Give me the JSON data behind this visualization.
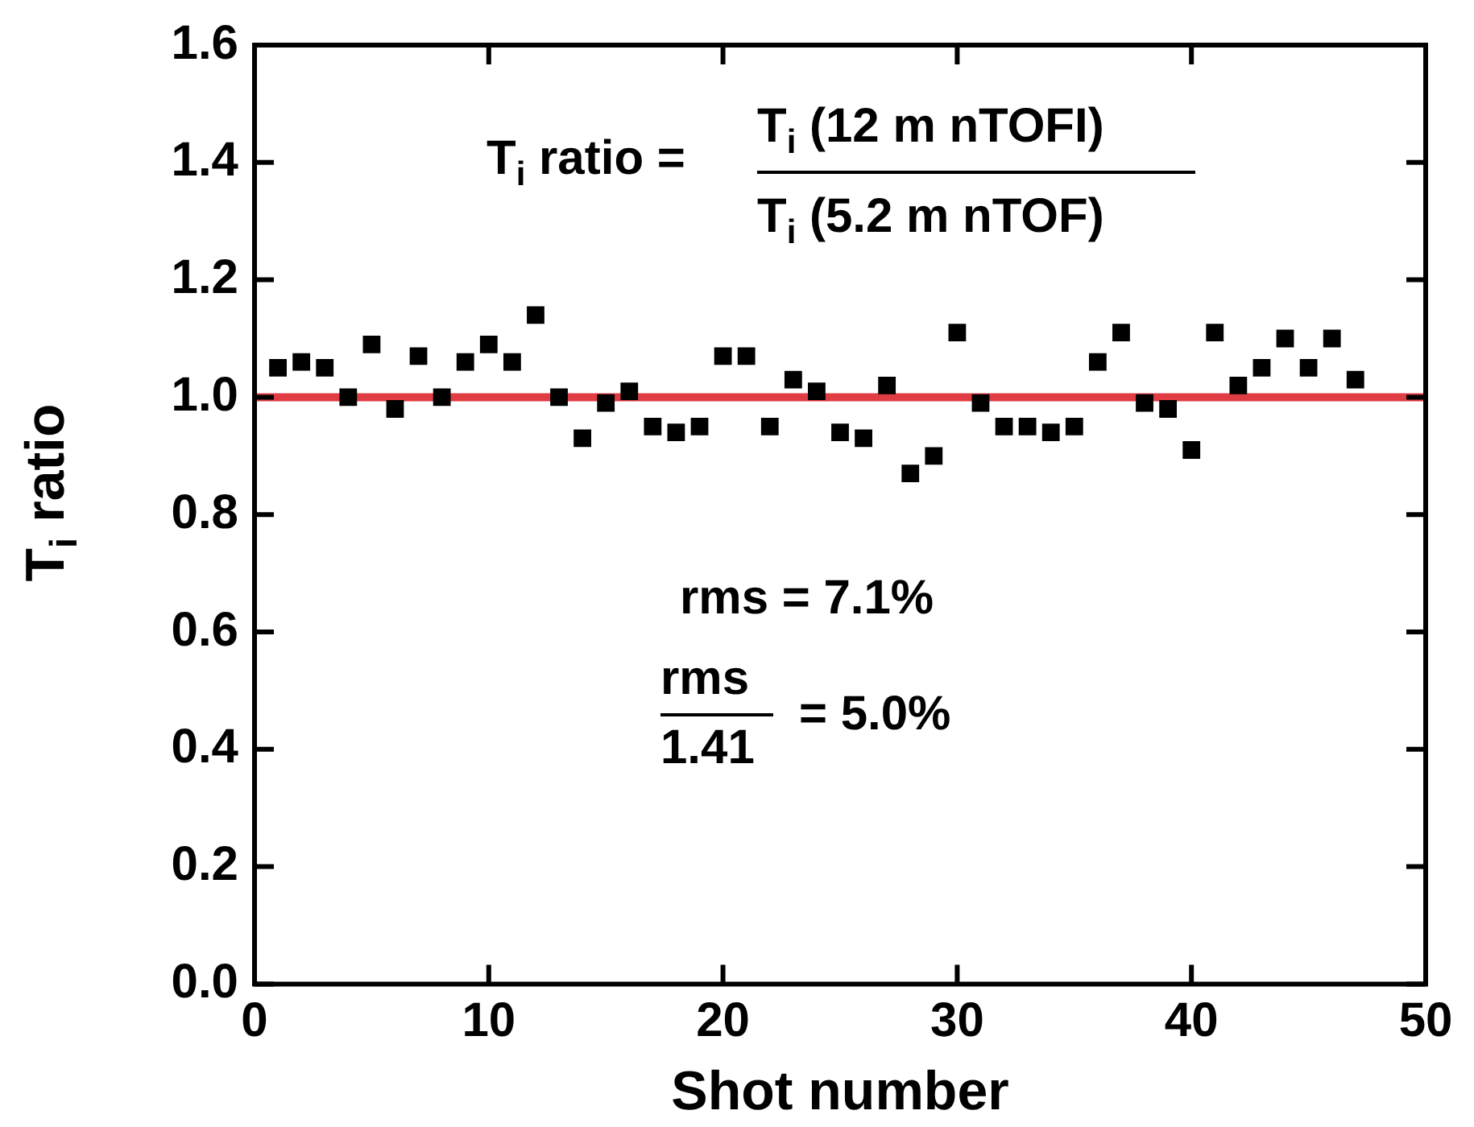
{
  "chart_data": {
    "type": "scatter",
    "xlabel": "Shot number",
    "ylabel": "T$_{i}$ ratio",
    "annotations": [
      "T$_{i}$ ratio =",
      "T$_{i}$ (12 m nTOFI)",
      "T$_{i}$ (5.2 m nTOF)",
      "rms = 7.1%",
      "rms",
      "1.41",
      "= 5.0%"
    ],
    "x": [
      1,
      2,
      3,
      4,
      5,
      6,
      7,
      8,
      9,
      10,
      11,
      12,
      13,
      14,
      15,
      16,
      17,
      18,
      19,
      20,
      21,
      22,
      23,
      24,
      25,
      26,
      27,
      28,
      29,
      30,
      31,
      32,
      33,
      34,
      35,
      36,
      37,
      38,
      39,
      40,
      41,
      42,
      43,
      44,
      45,
      46,
      47
    ],
    "series": [
      {
        "color": "#000000",
        "values": [
          1.05,
          1.06,
          1.05,
          1.0,
          1.09,
          0.98,
          1.07,
          1.0,
          1.06,
          1.09,
          1.06,
          1.14,
          1.0,
          0.93,
          0.99,
          1.01,
          0.95,
          0.94,
          0.95,
          1.07,
          1.07,
          0.95,
          1.03,
          1.01,
          0.94,
          0.93,
          1.02,
          0.87,
          0.9,
          1.11,
          0.99,
          0.95,
          0.95,
          0.94,
          0.95,
          1.06,
          1.11,
          0.99,
          0.98,
          0.91,
          1.11,
          1.02,
          1.05,
          1.1,
          1.05,
          1.1,
          1.03
        ]
      }
    ],
    "marker": "square",
    "ref_lines": [
      {
        "axis": "y",
        "value": 1.0,
        "color": "#e03c44"
      }
    ],
    "xlim": [
      0,
      50
    ],
    "xticks": [
      0,
      10,
      20,
      30,
      40,
      50
    ],
    "ylim": [
      0,
      1.6
    ],
    "yticks": [
      {
        "value": 0,
        "label": "0.0"
      },
      {
        "value": 0.2,
        "label": "0.2"
      },
      {
        "value": 0.4,
        "label": "0.4"
      },
      {
        "value": 0.6,
        "label": "0.6"
      },
      {
        "value": 0.8,
        "label": "0.8"
      },
      {
        "value": 1.0,
        "label": "1.0"
      },
      {
        "value": 1.2,
        "label": "1.2"
      },
      {
        "value": 1.4,
        "label": "1.4"
      },
      {
        "value": 1.6,
        "label": "1.6"
      }
    ],
    "grid": false,
    "legend": false
  }
}
